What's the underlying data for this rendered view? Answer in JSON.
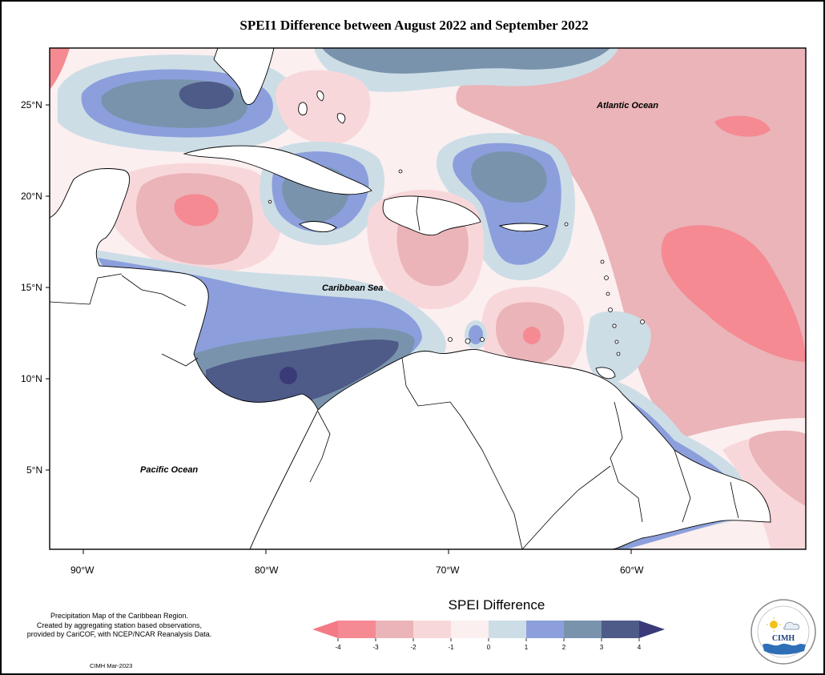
{
  "title": "SPEI1 Difference between August 2022 and September 2022",
  "map": {
    "lon_labels": [
      "90°W",
      "80°W",
      "70°W",
      "60°W"
    ],
    "lat_labels": [
      "25°N",
      "20°N",
      "15°N",
      "10°N",
      "5°N"
    ],
    "places": {
      "atlantic": "Atlantic Ocean",
      "caribbean": "Caribbean Sea",
      "pacific": "Pacific Ocean"
    }
  },
  "legend": {
    "title": "SPEI Difference",
    "ticks": [
      "-4",
      "-3",
      "-2",
      "-1",
      "0",
      "1",
      "2",
      "3",
      "4"
    ],
    "colors": [
      "#f58a93",
      "#eab4b8",
      "#f8d7da",
      "#fbeff0",
      "#ccdde6",
      "#8c9fdc",
      "#7a93ad",
      "#4e5a88"
    ],
    "triangle_colors": {
      "low": "#f47b86",
      "high": "#3a3a79"
    }
  },
  "credit_lines": [
    "Precipitation Map of the Caribbean Region.",
    "Created by aggregating station based observations,",
    "provided by CariCOF, with NCEP/NCAR Reanalysis Data."
  ],
  "stamp": "CIMH Mar-2023",
  "logo": {
    "text": "CIMH"
  }
}
